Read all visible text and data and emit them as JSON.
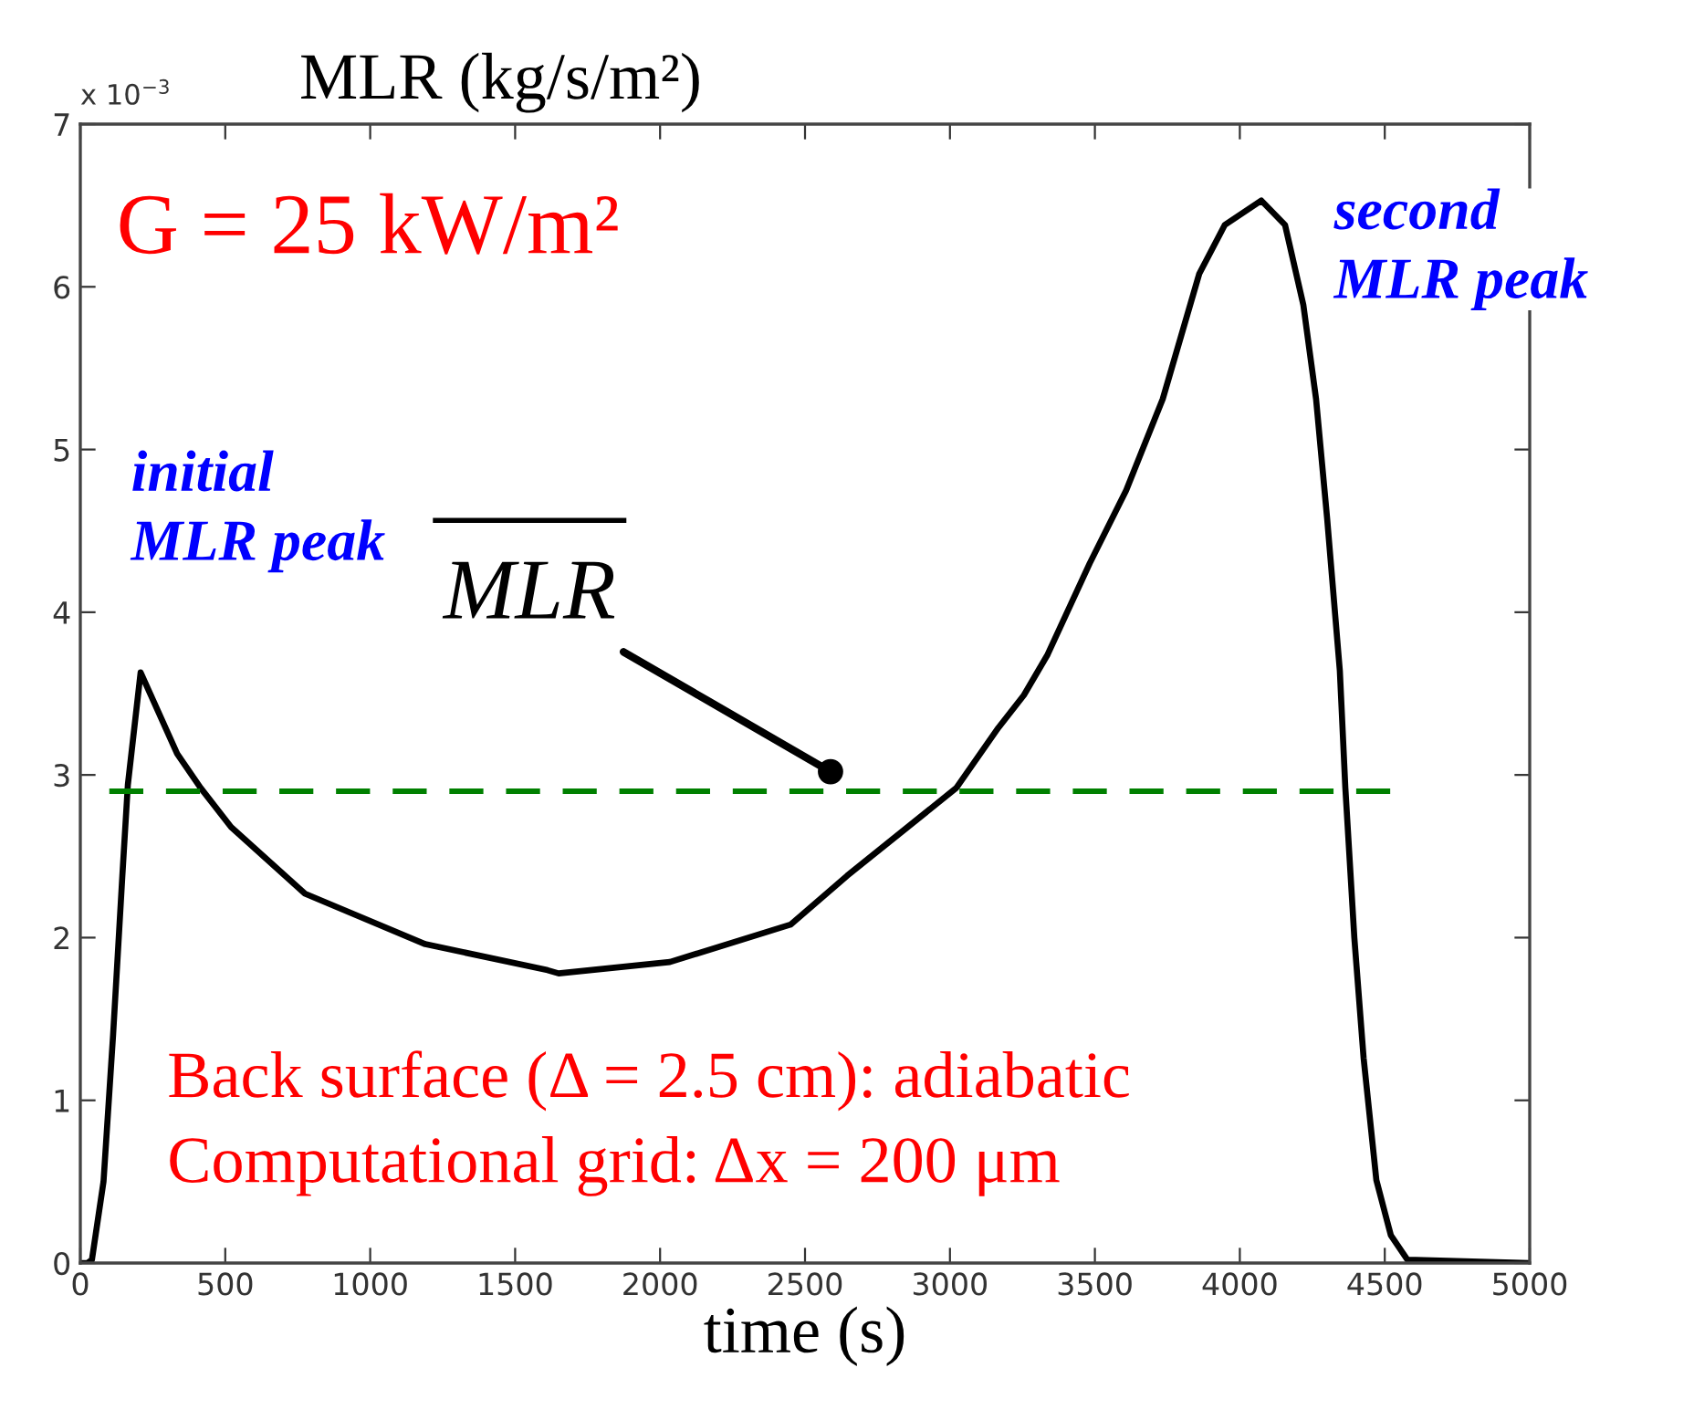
{
  "chart_data": {
    "type": "line",
    "xlabel": "time (s)",
    "ylabel": "MLR (kg/s/m²)",
    "xlim": [
      0,
      5000
    ],
    "ylim": [
      0,
      7
    ],
    "xticks": [
      0,
      500,
      1000,
      1500,
      2000,
      2500,
      3000,
      3500,
      4000,
      4500,
      5000
    ],
    "yticks": [
      0,
      1,
      2,
      3,
      4,
      5,
      6,
      7
    ],
    "grid": false,
    "marker": "none",
    "series": [
      {
        "color": "#000000",
        "line_style": "solid",
        "x": [
          0,
          25,
          40,
          80,
          113,
          145,
          164,
          208,
          334,
          415,
          520,
          775,
          1190,
          1612,
          1650,
          2034,
          2450,
          2645,
          3022,
          3167,
          3255,
          3337,
          3482,
          3608,
          3734,
          3860,
          3948,
          4074,
          4156,
          4219,
          4263,
          4301,
          4345,
          4364,
          4395,
          4427,
          4471,
          4521,
          4578,
          5000
        ],
        "values": [
          0,
          0,
          0.02,
          0.5,
          1.4,
          2.38,
          2.94,
          3.63,
          3.13,
          2.92,
          2.68,
          2.27,
          1.96,
          1.8,
          1.78,
          1.85,
          2.08,
          2.38,
          2.92,
          3.29,
          3.49,
          3.74,
          4.3,
          4.75,
          5.31,
          6.08,
          6.38,
          6.53,
          6.38,
          5.89,
          5.31,
          4.58,
          3.64,
          2.92,
          2.0,
          1.26,
          0.51,
          0.17,
          0.02,
          0
        ]
      },
      {
        "color": "#008000",
        "line_style": "dashed",
        "x": [
          100,
          4520
        ],
        "values": [
          2.9,
          2.9
        ]
      }
    ],
    "annotations": [
      "x 10$^{−3}$",
      "G = 25 kW/m²",
      "initial\nMLR peak",
      "second\nMLR peak",
      {
        "text": "MLR",
        "x": 2588,
        "y": 3.02
      },
      "Back surface (Δ = 2.5 cm): adiabatic",
      "Computational grid: Δx = 200 μm"
    ]
  }
}
